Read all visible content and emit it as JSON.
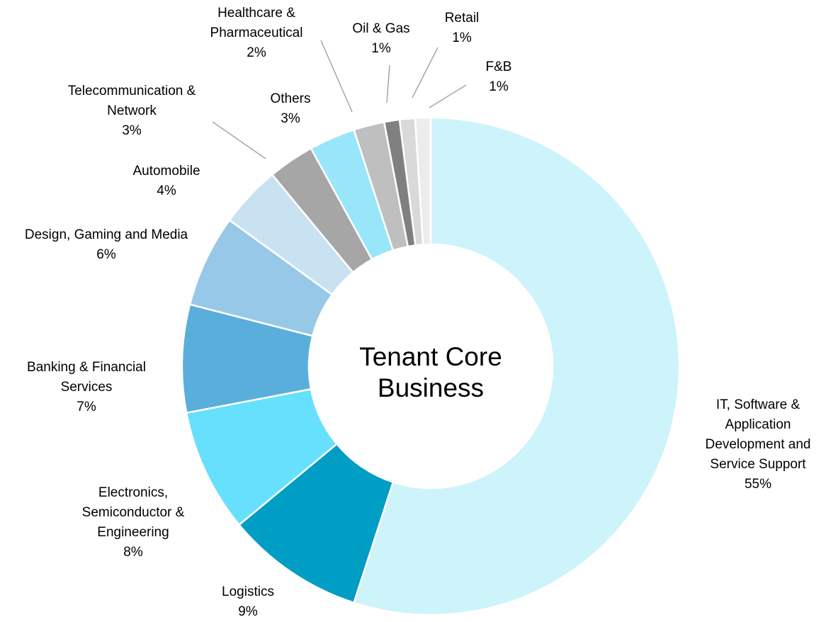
{
  "chart_data": {
    "type": "donut",
    "title": "Tenant Core Business",
    "categories": [
      "IT, Software & Application Development and Service Support",
      "Logistics",
      "Electronics, Semiconductor & Engineering",
      "Banking & Financial Services",
      "Design, Gaming and Media",
      "Automobile",
      "Telecommunication & Network",
      "Others",
      "Healthcare & Pharmaceutical",
      "Oil & Gas",
      "Retail",
      "F&B"
    ],
    "values": [
      55,
      9,
      8,
      7,
      6,
      4,
      3,
      3,
      2,
      1,
      1,
      1
    ],
    "value_labels": [
      "55%",
      "9%",
      "8%",
      "7%",
      "6%",
      "4%",
      "3%",
      "3%",
      "2%",
      "1%",
      "1%",
      "1%"
    ],
    "colors": [
      "#cdf3fb",
      "#009dc4",
      "#66e0fc",
      "#5aaedc",
      "#98c8e8",
      "#c9e2f2",
      "#a6a6a6",
      "#99e6fb",
      "#bfbfbf",
      "#808080",
      "#d9d9d9",
      "#ececec"
    ]
  }
}
